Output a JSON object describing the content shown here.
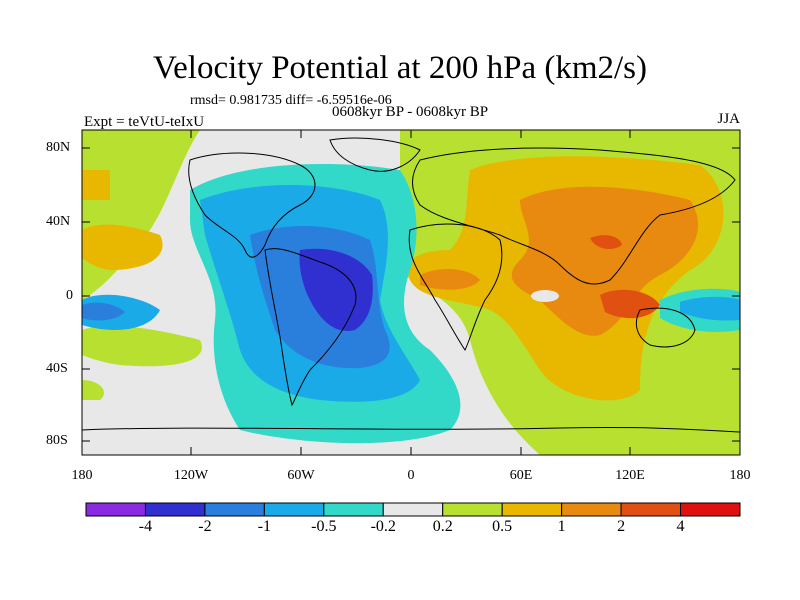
{
  "title": "Velocity Potential at 200 hPa (km2/s)",
  "stats": "rmsd= 0.981735 diff= -6.59516e-06",
  "period": "0608kyr BP - 0608kyr BP",
  "experiment": "Expt = teVtU-teIxU",
  "season": "JJA",
  "lat_ticks": [
    "80N",
    "40N",
    "0",
    "40S",
    "80S"
  ],
  "lon_ticks": [
    "180",
    "120W",
    "60W",
    "0",
    "60E",
    "120E",
    "180"
  ],
  "colorbar": {
    "labels": [
      "-4",
      "-2",
      "-1",
      "-0.5",
      "-0.2",
      "0.2",
      "0.5",
      "1",
      "2",
      "4"
    ],
    "colors": [
      "#8a2be2",
      "#3030d0",
      "#2a7fdc",
      "#1aaae8",
      "#32d8c8",
      "#e8e8e8",
      "#b8e030",
      "#e8b800",
      "#e88a10",
      "#e05010",
      "#e01010"
    ]
  },
  "palette": {
    "neutral": "#e8e8e8",
    "pos1": "#b8e030",
    "pos2": "#e8b800",
    "pos3": "#e88a10",
    "pos4": "#e05010",
    "neg1": "#32d8c8",
    "neg2": "#1aaae8",
    "neg3": "#2a7fdc",
    "neg4": "#3030d0"
  }
}
